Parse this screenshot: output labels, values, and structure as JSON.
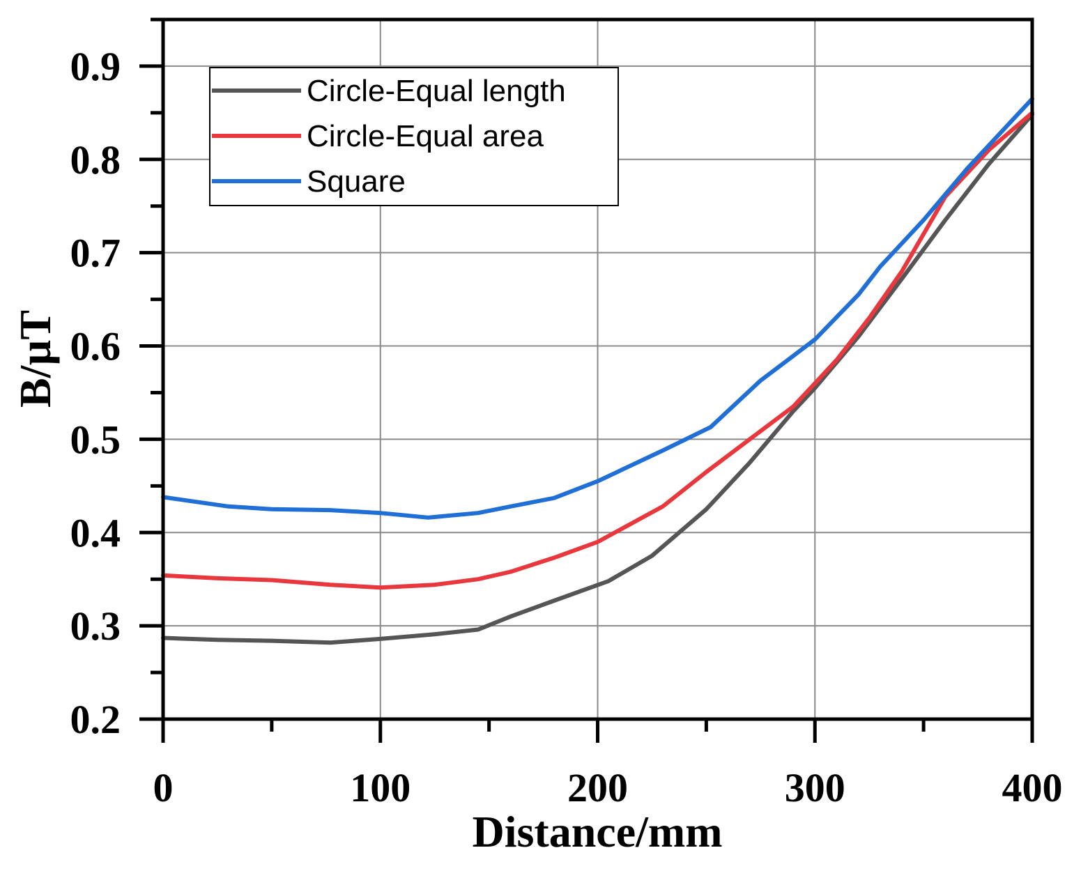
{
  "chart_data": {
    "type": "line",
    "title": "",
    "xlabel": "Distance/mm",
    "ylabel": "B/µT",
    "xlim": [
      0,
      400
    ],
    "ylim": [
      0.2,
      0.95
    ],
    "grid": true,
    "legend_position": "top-left",
    "x_ticks": [
      0,
      100,
      200,
      300,
      400
    ],
    "x_tick_labels": [
      "0",
      "100",
      "200",
      "300",
      "400"
    ],
    "y_ticks": [
      0.2,
      0.3,
      0.4,
      0.5,
      0.6,
      0.7,
      0.8,
      0.9
    ],
    "y_tick_labels": [
      "0.2",
      "0.3",
      "0.4",
      "0.5",
      "0.6",
      "0.7",
      "0.8",
      "0.9"
    ],
    "series": [
      {
        "name": "Circle-Equal length",
        "color": "#555555",
        "x": [
          0,
          25,
          50,
          77,
          100,
          125,
          145,
          160,
          180,
          205,
          225,
          250,
          270,
          290,
          300,
          320,
          340,
          360,
          380,
          400
        ],
        "values": [
          0.287,
          0.285,
          0.284,
          0.282,
          0.286,
          0.291,
          0.296,
          0.31,
          0.327,
          0.348,
          0.375,
          0.425,
          0.475,
          0.53,
          0.555,
          0.61,
          0.672,
          0.735,
          0.795,
          0.848
        ]
      },
      {
        "name": "Circle-Equal area",
        "color": "#e8373d",
        "x": [
          0,
          25,
          50,
          77,
          100,
          125,
          145,
          160,
          180,
          200,
          230,
          250,
          270,
          290,
          300,
          310,
          325,
          340,
          360,
          380,
          400
        ],
        "values": [
          0.354,
          0.351,
          0.349,
          0.344,
          0.341,
          0.344,
          0.35,
          0.358,
          0.373,
          0.39,
          0.428,
          0.465,
          0.5,
          0.535,
          0.56,
          0.585,
          0.63,
          0.68,
          0.76,
          0.81,
          0.85
        ]
      },
      {
        "name": "Square",
        "color": "#1f6fd6",
        "x": [
          0,
          30,
          50,
          77,
          100,
          122,
          145,
          160,
          180,
          200,
          230,
          252,
          275,
          300,
          320,
          330,
          350,
          370,
          390,
          400
        ],
        "values": [
          0.438,
          0.428,
          0.425,
          0.424,
          0.421,
          0.416,
          0.421,
          0.428,
          0.437,
          0.455,
          0.488,
          0.513,
          0.563,
          0.607,
          0.655,
          0.685,
          0.735,
          0.79,
          0.84,
          0.865
        ]
      }
    ]
  }
}
